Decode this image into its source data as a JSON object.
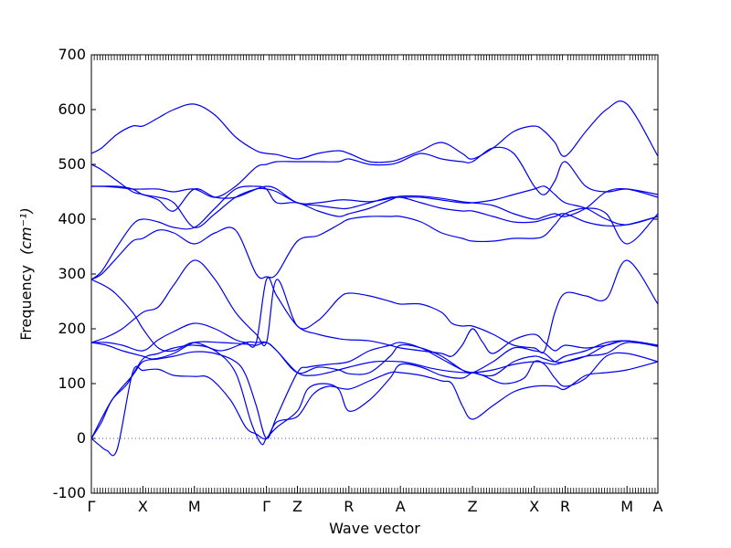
{
  "chart_data": {
    "type": "line",
    "title": "",
    "xlabel": "Wave vector",
    "ylabel": "Frequency",
    "ylabel_unit": "(cm⁻¹)",
    "ylim": [
      -100,
      700
    ],
    "yticks": [
      -100,
      0,
      100,
      200,
      300,
      400,
      500,
      600,
      700
    ],
    "xlim": [
      0,
      16
    ],
    "grid": false,
    "legend": "none",
    "line_color": "#0000ee",
    "zero_line_color": "#4a4aff",
    "kpoints": [
      {
        "label": "Γ",
        "x": 0
      },
      {
        "label": "X",
        "x": 1.0
      },
      {
        "label": "M",
        "x": 2.0
      },
      {
        "label": "Γ",
        "x": 3.4
      },
      {
        "label": "Z",
        "x": 4.0
      },
      {
        "label": "R",
        "x": 5.0
      },
      {
        "label": "A",
        "x": 6.0
      },
      {
        "label": "Z",
        "x": 7.4
      },
      {
        "label": "X",
        "x": 8.6
      },
      {
        "label": "R",
        "x": 9.2
      },
      {
        "label": "M",
        "x": 10.4
      },
      {
        "label": "A",
        "x": 11.0
      }
    ],
    "series": [
      {
        "x": [
          0,
          0.15,
          0.3,
          0.5,
          0.8,
          1.0,
          1.3,
          1.6,
          2.0,
          2.3,
          2.7,
          3.0,
          3.2,
          3.4,
          3.6,
          4.0,
          4.3,
          4.6,
          5.0,
          5.4,
          5.8,
          6.0,
          6.4,
          6.8,
          7.0,
          7.2,
          7.4,
          7.8,
          8.2,
          8.6,
          9.0,
          9.2,
          9.6,
          10.0,
          10.4,
          11.0
        ],
        "y": [
          0,
          -12,
          -22,
          -20,
          120,
          124,
          126,
          115,
          113,
          110,
          70,
          20,
          8,
          0,
          30,
          40,
          80,
          95,
          90,
          105,
          120,
          120,
          115,
          105,
          100,
          60,
          35,
          60,
          85,
          95,
          95,
          90,
          115,
          120,
          125,
          140
        ]
      },
      {
        "x": [
          0,
          0.2,
          0.4,
          0.7,
          1.0,
          1.3,
          1.6,
          2.0,
          2.4,
          2.8,
          3.1,
          3.3,
          3.4,
          3.6,
          4.0,
          4.2,
          4.5,
          4.8,
          5.0,
          5.4,
          5.8,
          6.0,
          6.4,
          6.8,
          7.2,
          7.4,
          7.6,
          8.0,
          8.4,
          8.6,
          8.8,
          9.0,
          9.2,
          9.6,
          10.0,
          10.4,
          11.0
        ],
        "y": [
          0,
          30,
          70,
          100,
          145,
          155,
          165,
          170,
          160,
          120,
          30,
          -10,
          0,
          20,
          50,
          90,
          100,
          90,
          50,
          70,
          110,
          135,
          130,
          115,
          110,
          120,
          115,
          100,
          110,
          140,
          135,
          110,
          95,
          110,
          150,
          155,
          140
        ]
      },
      {
        "x": [
          0,
          0.4,
          0.8,
          1.0,
          1.3,
          1.6,
          2.0,
          2.4,
          2.8,
          3.0,
          3.2,
          3.4,
          3.6,
          4.0,
          4.2,
          4.6,
          5.0,
          5.4,
          5.8,
          6.0,
          6.4,
          6.8,
          7.2,
          7.4,
          7.8,
          8.2,
          8.6,
          8.8,
          9.0,
          9.2,
          9.6,
          10.0,
          10.4,
          11.0
        ],
        "y": [
          0,
          70,
          115,
          140,
          145,
          150,
          158,
          155,
          140,
          115,
          60,
          0,
          40,
          120,
          130,
          135,
          140,
          160,
          170,
          175,
          165,
          145,
          125,
          120,
          115,
          140,
          150,
          145,
          140,
          150,
          160,
          175,
          178,
          170
        ]
      },
      {
        "x": [
          0,
          0.3,
          0.6,
          1.0,
          1.2,
          1.6,
          2.0,
          2.5,
          3.0,
          3.2,
          3.4,
          3.6,
          4.0,
          4.3,
          4.6,
          5.0,
          5.5,
          6.0,
          6.3,
          6.6,
          7.0,
          7.4,
          7.8,
          8.2,
          8.6,
          8.8,
          9.0,
          9.2,
          9.6,
          10.0,
          10.4,
          11.0
        ],
        "y": [
          175,
          170,
          160,
          150,
          145,
          155,
          175,
          175,
          172,
          170,
          175,
          160,
          120,
          115,
          120,
          130,
          140,
          140,
          135,
          128,
          122,
          120,
          125,
          135,
          140,
          138,
          135,
          140,
          150,
          155,
          175,
          168
        ]
      },
      {
        "x": [
          0,
          0.4,
          0.8,
          1.0,
          1.3,
          1.6,
          2.0,
          2.5,
          3.0,
          3.2,
          3.4,
          3.6,
          4.0,
          4.4,
          4.8,
          5.0,
          5.4,
          5.8,
          6.0,
          6.4,
          6.8,
          7.2,
          7.4,
          7.8,
          8.2,
          8.6,
          8.8,
          9.0,
          9.2,
          9.6,
          10.0,
          10.4,
          11.0
        ],
        "y": [
          290,
          270,
          230,
          200,
          165,
          160,
          175,
          160,
          175,
          175,
          175,
          160,
          120,
          130,
          125,
          118,
          120,
          150,
          170,
          165,
          150,
          125,
          120,
          140,
          165,
          160,
          155,
          140,
          140,
          150,
          170,
          178,
          170
        ]
      },
      {
        "x": [
          0,
          0.3,
          0.6,
          1.0,
          1.3,
          1.6,
          2.0,
          2.4,
          2.8,
          3.0,
          3.2,
          3.4,
          3.6,
          4.0,
          4.4,
          4.8,
          5.0,
          5.4,
          5.8,
          6.0,
          6.4,
          6.8,
          7.0,
          7.2,
          7.4,
          7.6,
          7.8,
          8.2,
          8.6,
          8.8,
          9.0,
          9.2,
          9.6,
          10.0,
          10.4,
          11.0
        ],
        "y": [
          175,
          175,
          170,
          160,
          180,
          195,
          210,
          200,
          180,
          175,
          175,
          290,
          260,
          205,
          190,
          182,
          180,
          178,
          170,
          165,
          160,
          155,
          150,
          170,
          200,
          175,
          155,
          180,
          190,
          175,
          160,
          170,
          165,
          170,
          178,
          168
        ]
      },
      {
        "x": [
          0,
          0.3,
          0.6,
          1.0,
          1.3,
          1.6,
          2.0,
          2.4,
          2.8,
          3.2,
          3.4,
          3.6,
          4.0,
          4.4,
          4.8,
          5.0,
          5.4,
          5.8,
          6.0,
          6.4,
          6.8,
          7.0,
          7.2,
          7.4,
          7.8,
          8.2,
          8.6,
          8.8,
          9.0,
          9.2,
          9.6,
          10.0,
          10.4,
          11.0
        ],
        "y": [
          175,
          185,
          200,
          230,
          240,
          280,
          325,
          290,
          230,
          190,
          175,
          290,
          205,
          215,
          255,
          265,
          260,
          250,
          245,
          245,
          230,
          210,
          205,
          205,
          190,
          170,
          165,
          160,
          230,
          265,
          260,
          255,
          325,
          245
        ]
      },
      {
        "x": [
          0,
          0.2,
          0.5,
          0.8,
          1.0,
          1.3,
          1.6,
          2.0,
          2.4,
          2.8,
          3.2,
          3.4,
          3.6,
          4.0,
          4.4,
          4.8,
          5.0,
          5.4,
          5.8,
          6.0,
          6.4,
          6.8,
          7.2,
          7.4,
          7.8,
          8.2,
          8.6,
          8.8,
          9.0,
          9.2,
          9.6,
          10.0,
          10.4,
          11.0
        ],
        "y": [
          290,
          300,
          330,
          360,
          365,
          380,
          375,
          355,
          375,
          380,
          300,
          295,
          300,
          360,
          370,
          390,
          400,
          405,
          405,
          405,
          395,
          375,
          365,
          360,
          360,
          365,
          365,
          370,
          390,
          410,
          420,
          410,
          355,
          410
        ]
      },
      {
        "x": [
          0,
          0.2,
          0.5,
          0.8,
          1.0,
          1.3,
          1.6,
          2.0,
          2.4,
          2.8,
          3.2,
          3.4,
          3.6,
          4.0,
          4.4,
          4.8,
          5.0,
          5.4,
          5.8,
          6.0,
          6.4,
          6.8,
          7.2,
          7.4,
          7.8,
          8.2,
          8.6,
          8.8,
          9.0,
          9.2,
          9.6,
          10.0,
          10.4,
          11.0
        ],
        "y": [
          290,
          305,
          350,
          390,
          400,
          395,
          385,
          385,
          420,
          455,
          460,
          455,
          430,
          430,
          415,
          405,
          410,
          420,
          435,
          440,
          430,
          420,
          415,
          415,
          405,
          395,
          395,
          400,
          405,
          410,
          395,
          388,
          390,
          405
        ]
      },
      {
        "x": [
          0,
          0.2,
          0.5,
          0.8,
          1.0,
          1.3,
          1.6,
          2.0,
          2.4,
          2.8,
          3.2,
          3.4,
          3.6,
          4.0,
          4.4,
          4.8,
          5.0,
          5.4,
          5.8,
          6.0,
          6.4,
          6.8,
          7.2,
          7.4,
          7.8,
          8.2,
          8.6,
          8.8,
          9.0,
          9.2,
          9.6,
          10.0,
          10.4,
          11.0
        ],
        "y": [
          460,
          460,
          460,
          455,
          445,
          440,
          430,
          385,
          410,
          440,
          455,
          455,
          450,
          430,
          425,
          420,
          420,
          430,
          440,
          440,
          440,
          435,
          430,
          430,
          435,
          445,
          455,
          460,
          445,
          430,
          420,
          400,
          390,
          405
        ]
      },
      {
        "x": [
          0,
          0.2,
          0.5,
          0.8,
          1.0,
          1.3,
          1.6,
          2.0,
          2.4,
          2.8,
          3.2,
          3.4,
          3.6,
          4.0,
          4.4,
          4.8,
          5.0,
          5.4,
          5.8,
          6.0,
          6.4,
          6.8,
          7.2,
          7.4,
          7.8,
          8.2,
          8.6,
          8.8,
          9.0,
          9.2,
          9.6,
          10.0,
          10.4,
          11.0
        ],
        "y": [
          500,
          490,
          470,
          450,
          445,
          435,
          415,
          455,
          440,
          440,
          455,
          460,
          455,
          430,
          430,
          435,
          435,
          432,
          438,
          442,
          442,
          438,
          432,
          430,
          425,
          410,
          400,
          405,
          410,
          405,
          420,
          450,
          455,
          440
        ]
      },
      {
        "x": [
          0,
          0.2,
          0.5,
          0.8,
          1.0,
          1.3,
          1.6,
          2.0,
          2.4,
          2.8,
          3.2,
          3.4,
          3.6,
          4.0,
          4.4,
          4.8,
          5.0,
          5.4,
          5.8,
          6.0,
          6.4,
          6.8,
          7.2,
          7.4,
          7.8,
          8.2,
          8.6,
          8.8,
          9.0,
          9.2,
          9.6,
          10.0,
          10.4,
          11.0
        ],
        "y": [
          460,
          460,
          458,
          455,
          455,
          455,
          450,
          455,
          440,
          460,
          495,
          500,
          505,
          505,
          505,
          505,
          510,
          500,
          500,
          505,
          520,
          510,
          505,
          505,
          530,
          520,
          460,
          445,
          470,
          505,
          460,
          450,
          455,
          445
        ]
      },
      {
        "x": [
          0,
          0.2,
          0.5,
          0.8,
          1.0,
          1.3,
          1.6,
          2.0,
          2.4,
          2.8,
          3.2,
          3.4,
          3.6,
          4.0,
          4.4,
          4.8,
          5.0,
          5.4,
          5.8,
          6.0,
          6.4,
          6.8,
          7.2,
          7.4,
          7.8,
          8.2,
          8.6,
          8.8,
          9.0,
          9.2,
          9.6,
          10.0,
          10.4,
          11.0
        ],
        "y": [
          520,
          530,
          555,
          570,
          570,
          585,
          600,
          610,
          590,
          550,
          525,
          520,
          518,
          510,
          520,
          525,
          520,
          505,
          505,
          510,
          525,
          540,
          520,
          510,
          530,
          560,
          570,
          560,
          540,
          515,
          560,
          600,
          610,
          515
        ]
      }
    ]
  }
}
